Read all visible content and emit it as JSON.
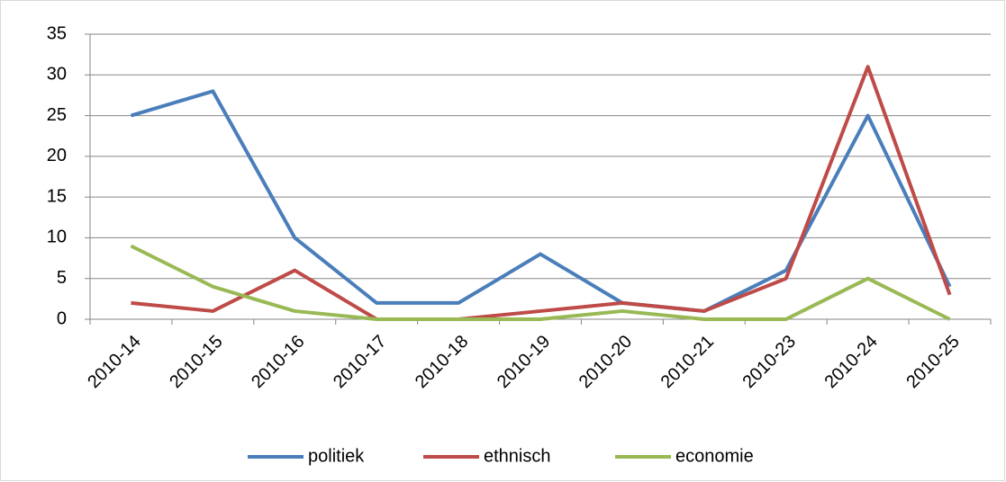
{
  "chart_data": {
    "type": "line",
    "categories": [
      "2010-14",
      "2010-15",
      "2010-16",
      "2010-17",
      "2010-18",
      "2010-19",
      "2010-20",
      "2010-21",
      "2010-23",
      "2010-24",
      "2010-25"
    ],
    "series": [
      {
        "name": "politiek",
        "color": "#4a7ebb",
        "values": [
          25,
          28,
          10,
          2,
          2,
          8,
          2,
          1,
          6,
          25,
          4
        ]
      },
      {
        "name": "ethnisch",
        "color": "#be4b48",
        "values": [
          2,
          1,
          6,
          0,
          0,
          1,
          2,
          1,
          5,
          31,
          3
        ]
      },
      {
        "name": "economie",
        "color": "#98b954",
        "values": [
          9,
          4,
          1,
          0,
          0,
          0,
          1,
          0,
          0,
          5,
          0
        ]
      }
    ],
    "ylim": [
      0,
      35
    ],
    "yticks": [
      0,
      5,
      10,
      15,
      20,
      25,
      30,
      35
    ],
    "grid": true,
    "legend": "bottom"
  }
}
